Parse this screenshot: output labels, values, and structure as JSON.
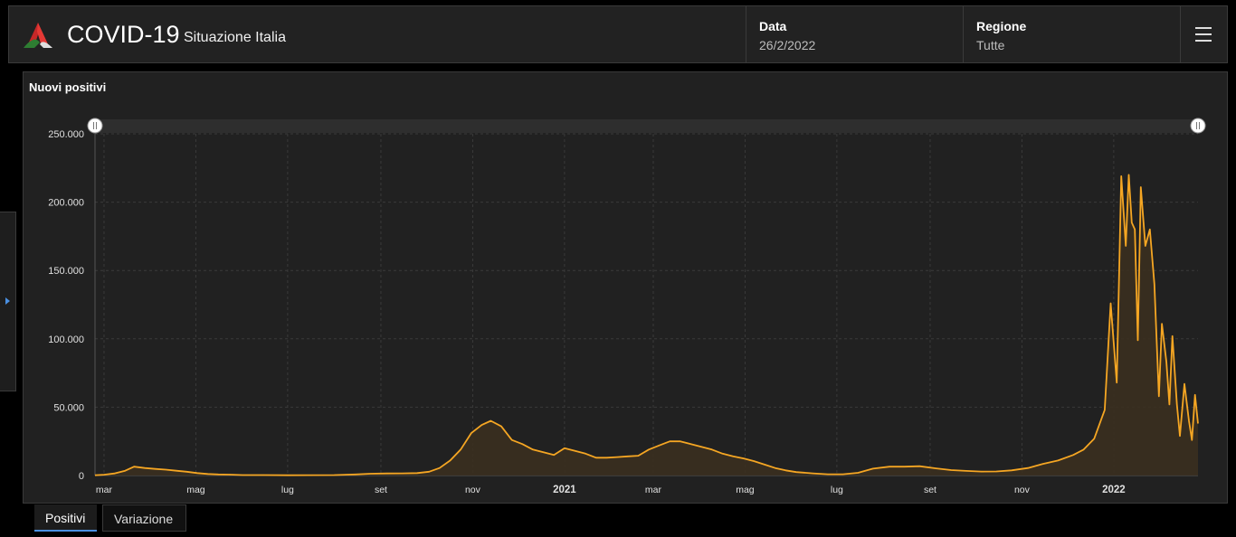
{
  "header": {
    "title": "COVID-19",
    "subtitle": "Situazione Italia",
    "date_label": "Data",
    "date_value": "26/2/2022",
    "region_label": "Regione",
    "region_value": "Tutte"
  },
  "tabs": [
    {
      "label": "Positivi",
      "active": true
    },
    {
      "label": "Variazione",
      "active": false
    }
  ],
  "colors": {
    "line": "#f5a623",
    "fill": "#3b2f1e",
    "accent": "#4a90e2"
  },
  "chart_data": {
    "type": "area",
    "title": "Nuovi positivi",
    "xlabel": "",
    "ylabel": "",
    "ylim": [
      0,
      250000
    ],
    "xlim": [
      "2020-02-24",
      "2022-02-26"
    ],
    "grid": true,
    "y_ticks": [
      {
        "value": 0,
        "label": "0"
      },
      {
        "value": 50000,
        "label": "50.000"
      },
      {
        "value": 100000,
        "label": "100.000"
      },
      {
        "value": 150000,
        "label": "150.000"
      },
      {
        "value": 200000,
        "label": "200.000"
      },
      {
        "value": 250000,
        "label": "250.000"
      }
    ],
    "x_ticks": [
      {
        "date": "2020-03-01",
        "label": "mar",
        "bold": false
      },
      {
        "date": "2020-05-01",
        "label": "mag",
        "bold": false
      },
      {
        "date": "2020-07-01",
        "label": "lug",
        "bold": false
      },
      {
        "date": "2020-09-01",
        "label": "set",
        "bold": false
      },
      {
        "date": "2020-11-01",
        "label": "nov",
        "bold": false
      },
      {
        "date": "2021-01-01",
        "label": "2021",
        "bold": true
      },
      {
        "date": "2021-03-01",
        "label": "mar",
        "bold": false
      },
      {
        "date": "2021-05-01",
        "label": "mag",
        "bold": false
      },
      {
        "date": "2021-07-01",
        "label": "lug",
        "bold": false
      },
      {
        "date": "2021-09-01",
        "label": "set",
        "bold": false
      },
      {
        "date": "2021-11-01",
        "label": "nov",
        "bold": false
      },
      {
        "date": "2022-01-01",
        "label": "2022",
        "bold": true
      }
    ],
    "series": [
      {
        "points": [
          [
            "2020-02-24",
            200
          ],
          [
            "2020-03-01",
            600
          ],
          [
            "2020-03-08",
            1500
          ],
          [
            "2020-03-15",
            3500
          ],
          [
            "2020-03-21",
            6500
          ],
          [
            "2020-03-28",
            5500
          ],
          [
            "2020-04-04",
            4800
          ],
          [
            "2020-04-11",
            4300
          ],
          [
            "2020-04-18",
            3500
          ],
          [
            "2020-04-25",
            2800
          ],
          [
            "2020-05-02",
            1800
          ],
          [
            "2020-05-09",
            1100
          ],
          [
            "2020-05-16",
            800
          ],
          [
            "2020-05-23",
            650
          ],
          [
            "2020-06-01",
            350
          ],
          [
            "2020-06-15",
            300
          ],
          [
            "2020-07-01",
            200
          ],
          [
            "2020-07-15",
            250
          ],
          [
            "2020-08-01",
            350
          ],
          [
            "2020-08-15",
            800
          ],
          [
            "2020-08-25",
            1300
          ],
          [
            "2020-09-05",
            1500
          ],
          [
            "2020-09-15",
            1600
          ],
          [
            "2020-09-25",
            1800
          ],
          [
            "2020-10-03",
            2800
          ],
          [
            "2020-10-10",
            5500
          ],
          [
            "2020-10-17",
            11000
          ],
          [
            "2020-10-24",
            19000
          ],
          [
            "2020-10-31",
            31000
          ],
          [
            "2020-11-07",
            37000
          ],
          [
            "2020-11-13",
            40000
          ],
          [
            "2020-11-20",
            36000
          ],
          [
            "2020-11-27",
            26000
          ],
          [
            "2020-12-04",
            23000
          ],
          [
            "2020-12-11",
            19000
          ],
          [
            "2020-12-18",
            17000
          ],
          [
            "2020-12-25",
            15000
          ],
          [
            "2021-01-01",
            20000
          ],
          [
            "2021-01-08",
            18000
          ],
          [
            "2021-01-15",
            16000
          ],
          [
            "2021-01-22",
            13000
          ],
          [
            "2021-01-29",
            13000
          ],
          [
            "2021-02-05",
            13500
          ],
          [
            "2021-02-12",
            14000
          ],
          [
            "2021-02-19",
            14500
          ],
          [
            "2021-02-26",
            19000
          ],
          [
            "2021-03-05",
            22000
          ],
          [
            "2021-03-12",
            25000
          ],
          [
            "2021-03-19",
            25000
          ],
          [
            "2021-03-26",
            23000
          ],
          [
            "2021-04-02",
            21000
          ],
          [
            "2021-04-09",
            19000
          ],
          [
            "2021-04-16",
            16000
          ],
          [
            "2021-04-23",
            14000
          ],
          [
            "2021-04-30",
            12500
          ],
          [
            "2021-05-07",
            10500
          ],
          [
            "2021-05-14",
            8000
          ],
          [
            "2021-05-21",
            5500
          ],
          [
            "2021-05-28",
            3800
          ],
          [
            "2021-06-04",
            2500
          ],
          [
            "2021-06-15",
            1600
          ],
          [
            "2021-06-25",
            900
          ],
          [
            "2021-07-05",
            900
          ],
          [
            "2021-07-15",
            2000
          ],
          [
            "2021-07-25",
            5000
          ],
          [
            "2021-08-05",
            6500
          ],
          [
            "2021-08-15",
            6500
          ],
          [
            "2021-08-25",
            6800
          ],
          [
            "2021-09-05",
            5200
          ],
          [
            "2021-09-15",
            4000
          ],
          [
            "2021-09-25",
            3400
          ],
          [
            "2021-10-05",
            2900
          ],
          [
            "2021-10-15",
            3000
          ],
          [
            "2021-10-25",
            3800
          ],
          [
            "2021-11-05",
            5500
          ],
          [
            "2021-11-15",
            8500
          ],
          [
            "2021-11-25",
            11000
          ],
          [
            "2021-12-05",
            15000
          ],
          [
            "2021-12-12",
            19000
          ],
          [
            "2021-12-19",
            27000
          ],
          [
            "2021-12-26",
            48000
          ],
          [
            "2021-12-30",
            126000
          ],
          [
            "2022-01-03",
            68000
          ],
          [
            "2022-01-06",
            219000
          ],
          [
            "2022-01-09",
            168000
          ],
          [
            "2022-01-11",
            220000
          ],
          [
            "2022-01-13",
            185000
          ],
          [
            "2022-01-15",
            180000
          ],
          [
            "2022-01-17",
            99000
          ],
          [
            "2022-01-19",
            211000
          ],
          [
            "2022-01-22",
            168000
          ],
          [
            "2022-01-25",
            180000
          ],
          [
            "2022-01-28",
            140000
          ],
          [
            "2022-01-31",
            58000
          ],
          [
            "2022-02-02",
            111000
          ],
          [
            "2022-02-05",
            83000
          ],
          [
            "2022-02-07",
            52000
          ],
          [
            "2022-02-09",
            102000
          ],
          [
            "2022-02-12",
            52000
          ],
          [
            "2022-02-14",
            29000
          ],
          [
            "2022-02-17",
            67000
          ],
          [
            "2022-02-20",
            40000
          ],
          [
            "2022-02-22",
            26000
          ],
          [
            "2022-02-24",
            59000
          ],
          [
            "2022-02-26",
            38000
          ]
        ]
      }
    ]
  }
}
